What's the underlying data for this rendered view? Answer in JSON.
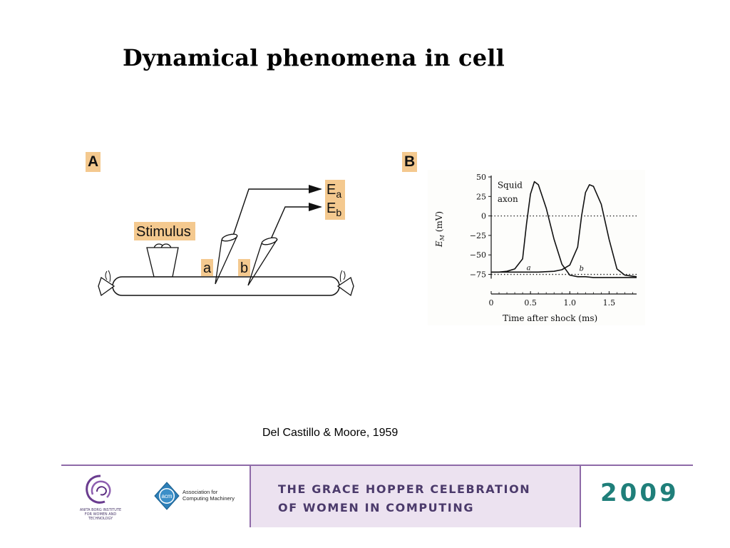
{
  "slide": {
    "title": "Dynamical phenomena in cell",
    "caption": "Del Castillo & Moore, 1959"
  },
  "panel_a": {
    "label": "A",
    "stimulus_label": "Stimulus",
    "point_a": "a",
    "point_b": "b",
    "electrode_a": {
      "base": "E",
      "sub": "a"
    },
    "electrode_b": {
      "base": "E",
      "sub": "b"
    }
  },
  "panel_b": {
    "label": "B",
    "legend_line1": "Squid",
    "legend_line2": "axon",
    "curve_a_label": "a",
    "curve_b_label": "b"
  },
  "chart_data": {
    "type": "line",
    "title": "",
    "xlabel": "Time after shock (ms)",
    "ylabel": "E_M (mV)",
    "ylabel_main": "E",
    "ylabel_sub": "M",
    "ylabel_unit": " (mV)",
    "xlim": [
      0,
      1.85
    ],
    "ylim": [
      -80,
      50
    ],
    "x_ticks": [
      "0",
      "0.5",
      "1.0",
      "1.5"
    ],
    "y_ticks": [
      "50",
      "25",
      "0",
      "−25",
      "−50",
      "−75"
    ],
    "reference_lines": [
      {
        "y": 0,
        "style": "dotted"
      },
      {
        "y": -75,
        "style": "dotted"
      }
    ],
    "series": [
      {
        "x": [
          0,
          0.1,
          0.2,
          0.3,
          0.4,
          0.45,
          0.5,
          0.55,
          0.6,
          0.7,
          0.8,
          0.9,
          1.0,
          1.1,
          1.2,
          1.3,
          1.4,
          1.5,
          1.6,
          1.7,
          1.85
        ],
        "y": [
          -72,
          -72,
          -71,
          -68,
          -55,
          -10,
          28,
          44,
          40,
          10,
          -30,
          -62,
          -76,
          -78,
          -78,
          -79,
          -79,
          -79,
          -79,
          -79,
          -79
        ]
      },
      {
        "x": [
          0,
          0.2,
          0.4,
          0.6,
          0.8,
          0.9,
          1.0,
          1.1,
          1.15,
          1.2,
          1.25,
          1.3,
          1.4,
          1.5,
          1.6,
          1.7,
          1.85
        ],
        "y": [
          -72,
          -72,
          -72,
          -72,
          -71,
          -69,
          -63,
          -40,
          0,
          30,
          40,
          38,
          15,
          -30,
          -68,
          -76,
          -78
        ]
      }
    ]
  },
  "footer": {
    "abi_text_1": "ANITA BORG INSTITUTE",
    "abi_text_2": "FOR WOMEN AND TECHNOLOGY",
    "acm_badge": "acm",
    "acm_line1": "Association for",
    "acm_line2": "Computing Machinery",
    "ghc_line1": "THE GRACE HOPPER CELEBRATION",
    "ghc_line2": "OF WOMEN IN COMPUTING",
    "year": "2009",
    "colors": {
      "purple": "#8e6aa8",
      "band": "#ece2f0",
      "teal": "#1f7f7a",
      "text": "#4b3a6b"
    }
  }
}
